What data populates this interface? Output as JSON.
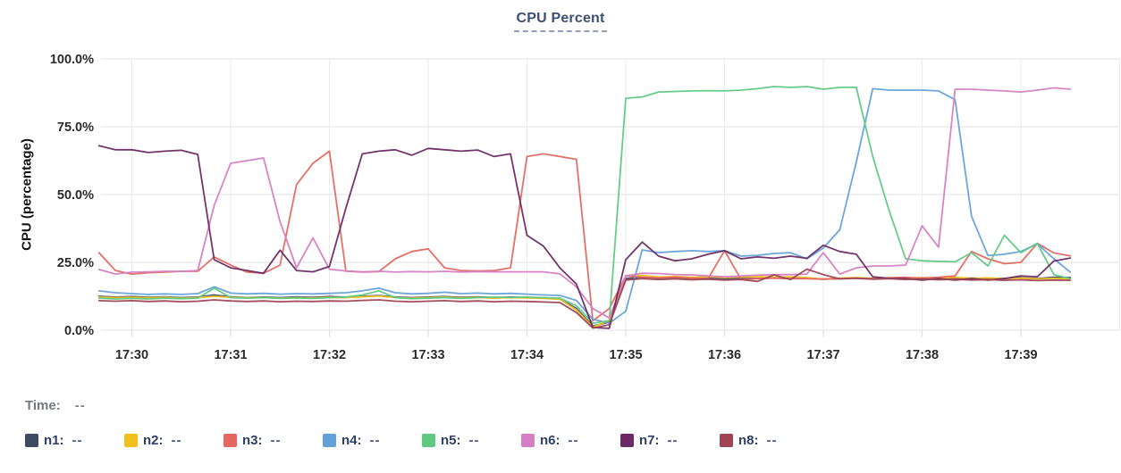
{
  "title": "CPU Percent",
  "time_row": {
    "label": "Time:",
    "value": "--"
  },
  "legend": [
    {
      "label": "n1:",
      "value": "--",
      "color": "#3e4a64"
    },
    {
      "label": "n2:",
      "value": "--",
      "color": "#f2c01d"
    },
    {
      "label": "n3:",
      "value": "--",
      "color": "#e3685f"
    },
    {
      "label": "n4:",
      "value": "--",
      "color": "#64a1d8"
    },
    {
      "label": "n5:",
      "value": "--",
      "color": "#5fc983"
    },
    {
      "label": "n6:",
      "value": "--",
      "color": "#d57ec4"
    },
    {
      "label": "n7:",
      "value": "--",
      "color": "#6b2a63"
    },
    {
      "label": "n8:",
      "value": "--",
      "color": "#9e4455"
    }
  ],
  "chart_data": {
    "type": "line",
    "title": "CPU Percent",
    "ylabel": "CPU (percentage)",
    "xlabel": "",
    "ylim": [
      0,
      100
    ],
    "grid": true,
    "legend_position": "bottom",
    "y_ticks": [
      "0.0%",
      "25.0%",
      "50.0%",
      "75.0%",
      "100.0%"
    ],
    "y_tick_values": [
      0,
      25,
      50,
      75,
      100
    ],
    "x_ticks": [
      "17:30",
      "17:31",
      "17:32",
      "17:33",
      "17:34",
      "17:35",
      "17:36",
      "17:37",
      "17:38",
      "17:39"
    ],
    "x_start_minutes_from_17_30": -0.3333,
    "x_step_minutes": 0.16667,
    "sample_interval_seconds": 10,
    "series": [
      {
        "name": "n1",
        "color": "#3e4a64",
        "values": [
          12.5,
          12.2,
          12.4,
          12.1,
          12.3,
          12.0,
          12.2,
          13.0,
          12.3,
          12.0,
          12.2,
          12.0,
          12.3,
          12.1,
          12.4,
          12.2,
          12.5,
          12.8,
          12.2,
          12.0,
          12.2,
          12.4,
          12.1,
          12.3,
          12.0,
          12.2,
          12.0,
          11.8,
          11.5,
          8.0,
          1.5,
          3.0,
          19.0,
          19.5,
          19.2,
          19.4,
          19.1,
          19.3,
          19.0,
          19.2,
          19.0,
          19.3,
          19.0,
          19.2,
          18.8,
          19.0,
          19.3,
          19.0,
          19.2,
          18.9,
          19.1,
          18.8,
          19.0,
          19.2,
          18.9,
          19.1,
          19.3,
          19.0,
          19.5,
          19.4
        ]
      },
      {
        "name": "n2",
        "color": "#f2c01d",
        "values": [
          12.2,
          12.0,
          12.1,
          11.9,
          12.1,
          11.8,
          12.0,
          12.5,
          12.1,
          11.9,
          12.0,
          11.8,
          12.0,
          11.9,
          12.1,
          12.0,
          12.3,
          12.6,
          12.0,
          11.8,
          12.0,
          12.2,
          11.9,
          12.1,
          11.8,
          12.0,
          11.9,
          11.7,
          11.4,
          7.5,
          1.2,
          3.5,
          20.0,
          20.2,
          19.6,
          19.8,
          19.5,
          19.7,
          19.4,
          19.6,
          19.8,
          19.5,
          19.7,
          19.4,
          18.8,
          19.2,
          19.4,
          19.1,
          19.3,
          19.0,
          19.4,
          19.2,
          19.5,
          19.1,
          19.3,
          19.0,
          19.2,
          18.9,
          19.1,
          18.9
        ]
      },
      {
        "name": "n3",
        "color": "#e3685f",
        "values": [
          28.6,
          22.0,
          20.7,
          21.2,
          21.4,
          21.7,
          21.7,
          27.0,
          24.0,
          21.4,
          21.0,
          24.0,
          53.7,
          61.5,
          66.0,
          21.8,
          21.4,
          21.6,
          26.3,
          29.0,
          30.0,
          23.0,
          22.0,
          21.8,
          22.0,
          23.0,
          64.0,
          65.0,
          64.0,
          63.0,
          3.5,
          8.0,
          20.0,
          19.5,
          19.3,
          19.5,
          19.2,
          19.0,
          29.3,
          18.8,
          19.0,
          19.2,
          19.0,
          19.0,
          18.8,
          19.0,
          19.2,
          19.0,
          19.3,
          19.5,
          19.2,
          19.5,
          20.0,
          29.0,
          26.3,
          24.5,
          25.0,
          32.0,
          28.5,
          27.4
        ]
      },
      {
        "name": "n4",
        "color": "#64a1d8",
        "values": [
          14.5,
          13.8,
          13.5,
          13.2,
          13.4,
          13.2,
          13.5,
          16.0,
          13.7,
          13.4,
          13.6,
          13.3,
          13.5,
          13.4,
          13.6,
          13.8,
          14.5,
          15.5,
          13.8,
          13.4,
          13.6,
          14.0,
          13.5,
          13.7,
          13.4,
          13.6,
          13.3,
          13.0,
          12.8,
          11.0,
          4.0,
          2.6,
          7.0,
          29.6,
          28.6,
          29.0,
          29.3,
          29.0,
          29.3,
          27.3,
          27.6,
          28.3,
          28.6,
          26.3,
          30.3,
          37.0,
          62.0,
          89.0,
          88.5,
          88.5,
          88.5,
          88.2,
          85.0,
          42.0,
          27.5,
          28.0,
          29.0,
          31.9,
          26.3,
          21.4
        ]
      },
      {
        "name": "n5",
        "color": "#5fc983",
        "values": [
          11.8,
          11.5,
          11.7,
          11.5,
          11.8,
          11.6,
          11.8,
          15.5,
          12.0,
          11.8,
          12.0,
          11.7,
          11.9,
          11.7,
          12.0,
          12.2,
          13.0,
          14.5,
          12.0,
          11.6,
          11.8,
          12.0,
          11.7,
          12.0,
          12.2,
          12.0,
          12.2,
          12.0,
          11.8,
          9.0,
          2.6,
          3.5,
          85.5,
          86.0,
          87.8,
          88.0,
          88.2,
          88.3,
          88.2,
          88.5,
          89.0,
          89.8,
          89.5,
          89.8,
          88.8,
          89.5,
          89.5,
          64.0,
          44.0,
          26.3,
          25.6,
          25.4,
          25.2,
          28.6,
          23.7,
          35.0,
          28.6,
          32.0,
          20.5,
          19.0
        ]
      },
      {
        "name": "n6",
        "color": "#d57ec4",
        "values": [
          22.4,
          20.7,
          21.4,
          21.5,
          21.7,
          21.7,
          22.0,
          46.0,
          61.5,
          62.5,
          63.5,
          40.0,
          23.0,
          34.0,
          22.5,
          21.8,
          21.5,
          21.7,
          21.4,
          21.6,
          21.5,
          21.7,
          21.4,
          21.6,
          21.5,
          21.5,
          21.5,
          21.5,
          20.8,
          16.0,
          8.0,
          4.5,
          20.0,
          21.0,
          20.9,
          20.5,
          20.4,
          20.0,
          19.7,
          20.0,
          20.3,
          20.5,
          20.5,
          20.7,
          28.6,
          20.7,
          23.0,
          23.7,
          23.7,
          24.0,
          38.5,
          30.6,
          88.8,
          88.8,
          88.5,
          88.2,
          87.8,
          88.5,
          89.3,
          88.8
        ]
      },
      {
        "name": "n7",
        "color": "#6b2a63",
        "values": [
          68.0,
          66.5,
          66.5,
          65.5,
          66.0,
          66.3,
          64.8,
          26.0,
          23.0,
          22.0,
          21.0,
          29.5,
          22.0,
          21.5,
          23.5,
          45.0,
          65.0,
          66.0,
          66.5,
          64.5,
          67.0,
          66.5,
          66.0,
          66.4,
          64.0,
          65.0,
          35.0,
          31.0,
          23.0,
          17.0,
          1.0,
          0.7,
          26.0,
          32.5,
          27.3,
          25.6,
          26.3,
          28.0,
          29.3,
          26.3,
          27.0,
          26.5,
          27.3,
          26.5,
          31.3,
          29.0,
          28.0,
          19.7,
          19.1,
          19.0,
          18.5,
          19.0,
          18.5,
          19.0,
          18.5,
          19.0,
          20.0,
          19.7,
          25.5,
          26.6
        ]
      },
      {
        "name": "n8",
        "color": "#9e4455",
        "values": [
          10.9,
          10.7,
          10.9,
          10.6,
          10.8,
          10.5,
          10.7,
          11.2,
          10.8,
          10.6,
          10.8,
          10.5,
          10.7,
          10.6,
          10.8,
          10.7,
          11.0,
          11.2,
          10.7,
          10.5,
          10.7,
          10.9,
          10.6,
          10.8,
          10.5,
          10.7,
          10.6,
          10.4,
          10.2,
          6.5,
          0.8,
          2.0,
          18.5,
          19.0,
          18.7,
          18.9,
          18.6,
          18.8,
          18.5,
          18.7,
          18.0,
          20.4,
          18.7,
          22.5,
          20.5,
          18.9,
          19.1,
          18.8,
          19.0,
          18.7,
          18.9,
          18.6,
          18.8,
          18.5,
          18.7,
          18.4,
          18.6,
          18.3,
          18.5,
          18.4
        ]
      }
    ]
  }
}
